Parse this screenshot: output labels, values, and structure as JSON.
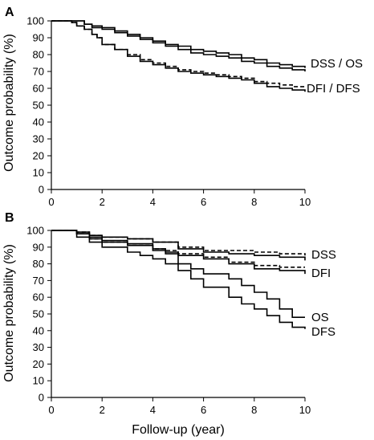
{
  "chart_data": [
    {
      "type": "line",
      "panel_label": "A",
      "xlabel": "",
      "ylabel": "Outcome probability (%)",
      "xlim": [
        0,
        10
      ],
      "ylim": [
        0,
        100
      ],
      "x_ticks": [
        0,
        2,
        4,
        6,
        8,
        10
      ],
      "y_ticks": [
        0,
        10,
        20,
        30,
        40,
        50,
        60,
        70,
        80,
        90,
        100
      ],
      "curve_labels": [
        "DSS / OS",
        "DFI / DFS"
      ],
      "series": [
        {
          "x": [
            0,
            1.0,
            1.3,
            1.6,
            2.0,
            2.5,
            3.0,
            3.5,
            4.0,
            4.5,
            5.0,
            5.5,
            6.0,
            6.5,
            7.0,
            7.5,
            8.0,
            8.5,
            9.0,
            9.5,
            10.0
          ],
          "y": [
            100,
            100,
            98,
            97,
            96,
            94,
            92,
            90,
            88,
            86,
            85,
            83,
            82,
            81,
            80,
            78,
            77,
            75,
            74,
            73,
            72
          ],
          "dashed": false
        },
        {
          "x": [
            0,
            1.0,
            1.3,
            1.6,
            2.0,
            2.5,
            3.0,
            3.5,
            4.0,
            4.5,
            5.0,
            5.5,
            6.0,
            6.5,
            7.0,
            7.5,
            8.0,
            8.5,
            9.0,
            9.5,
            10.0
          ],
          "y": [
            100,
            100,
            98,
            96,
            95,
            93,
            91,
            89,
            87,
            85,
            83,
            81,
            80,
            79,
            78,
            76,
            75,
            73,
            72,
            71,
            70
          ],
          "dashed": false
        },
        {
          "x": [
            0,
            0.8,
            1.0,
            1.3,
            1.6,
            1.8,
            2.0,
            2.5,
            3.0,
            3.5,
            4.0,
            4.5,
            5.0,
            5.5,
            6.0,
            6.5,
            7.0,
            7.5,
            8.0,
            8.5,
            9.0,
            9.5,
            10.0
          ],
          "y": [
            100,
            99,
            97,
            95,
            92,
            90,
            86,
            83,
            80,
            77,
            75,
            73,
            71,
            70,
            69,
            68,
            67,
            66,
            64,
            63,
            62,
            61,
            61
          ],
          "dashed": true
        },
        {
          "x": [
            0,
            0.8,
            1.0,
            1.3,
            1.6,
            1.8,
            2.0,
            2.5,
            3.0,
            3.5,
            4.0,
            4.5,
            5.0,
            5.5,
            6.0,
            6.5,
            7.0,
            7.5,
            8.0,
            8.5,
            9.0,
            9.5,
            10.0
          ],
          "y": [
            100,
            99,
            97,
            95,
            92,
            90,
            86,
            83,
            79,
            76,
            74,
            72,
            70,
            69,
            68,
            67,
            66,
            65,
            63,
            61,
            60,
            59,
            58
          ],
          "dashed": false
        }
      ]
    },
    {
      "type": "line",
      "panel_label": "B",
      "xlabel": "Follow-up (year)",
      "ylabel": "Outcome probability (%)",
      "xlim": [
        0,
        10
      ],
      "ylim": [
        0,
        100
      ],
      "x_ticks": [
        0,
        2,
        4,
        6,
        8,
        10
      ],
      "y_ticks": [
        0,
        10,
        20,
        30,
        40,
        50,
        60,
        70,
        80,
        90,
        100
      ],
      "curve_labels": [
        "DSS",
        "DFI",
        "OS",
        "DFS"
      ],
      "series": [
        {
          "x": [
            0,
            1.0,
            1.5,
            2.0,
            3.0,
            4.0,
            5.0,
            6.0,
            7.0,
            8.0,
            9.0,
            10.0
          ],
          "y": [
            100,
            99,
            97,
            96,
            95,
            93,
            90,
            88,
            88,
            87,
            86,
            85
          ],
          "dashed": true
        },
        {
          "x": [
            0,
            1.0,
            1.5,
            2.0,
            3.0,
            4.0,
            5.0,
            6.0,
            7.0,
            8.0,
            9.0,
            10.0
          ],
          "y": [
            100,
            99,
            97,
            96,
            95,
            93,
            89,
            87,
            86,
            85,
            84,
            82
          ],
          "dashed": false
        },
        {
          "x": [
            0,
            1.0,
            1.5,
            2.0,
            3.0,
            4.0,
            4.5,
            5.0,
            6.0,
            7.0,
            8.0,
            9.0,
            10.0
          ],
          "y": [
            100,
            98,
            95,
            93,
            91,
            89,
            88,
            86,
            84,
            81,
            79,
            78,
            78
          ],
          "dashed": true
        },
        {
          "x": [
            0,
            1.0,
            1.5,
            2.0,
            3.0,
            4.0,
            4.5,
            5.0,
            6.0,
            7.0,
            8.0,
            9.0,
            10.0
          ],
          "y": [
            100,
            98,
            95,
            93,
            91,
            88,
            87,
            85,
            83,
            80,
            77,
            76,
            74
          ],
          "dashed": false
        },
        {
          "x": [
            0,
            1.0,
            1.5,
            2.0,
            3.0,
            4.0,
            4.5,
            5.0,
            5.5,
            6.0,
            7.0,
            7.5,
            8.0,
            8.5,
            9.0,
            9.5,
            10.0
          ],
          "y": [
            100,
            98,
            96,
            94,
            92,
            89,
            86,
            80,
            77,
            74,
            71,
            67,
            63,
            59,
            53,
            48,
            48
          ],
          "dashed": false
        },
        {
          "x": [
            0,
            1.0,
            1.5,
            2.0,
            3.0,
            3.5,
            4.0,
            4.5,
            5.0,
            5.5,
            6.0,
            7.0,
            7.5,
            8.0,
            8.5,
            9.0,
            9.5,
            10.0
          ],
          "y": [
            100,
            96,
            93,
            90,
            87,
            85,
            83,
            80,
            76,
            71,
            66,
            60,
            56,
            53,
            49,
            45,
            42,
            41
          ],
          "dashed": false
        }
      ]
    }
  ]
}
